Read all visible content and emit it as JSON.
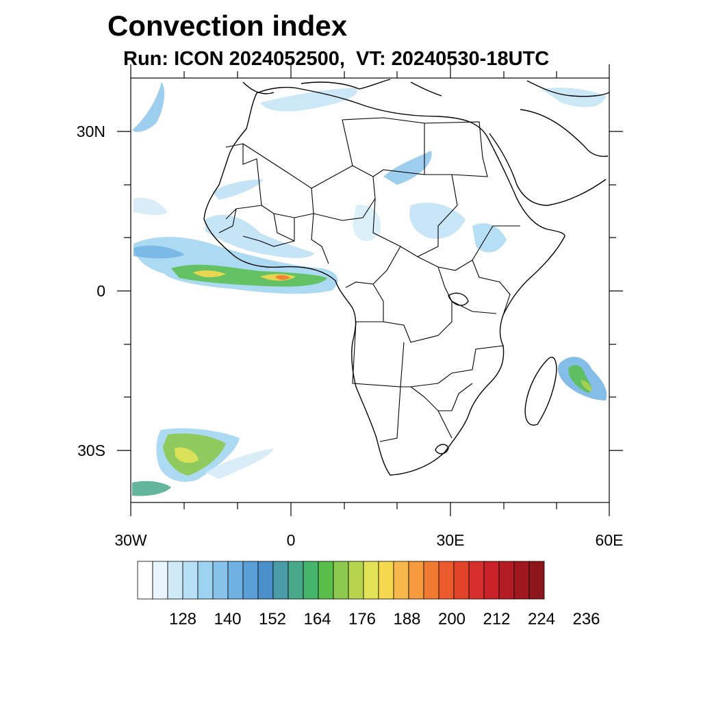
{
  "title": "Convection index",
  "subtitle": "Run: ICON 2024052500,  VT: 20240530-18UTC",
  "axes": {
    "lon_labels": [
      "30W",
      "0",
      "30E",
      "60E"
    ],
    "lat_labels": [
      "30N",
      "0",
      "30S"
    ],
    "lon_range": [
      -30,
      60
    ],
    "lat_range": [
      -40,
      40
    ]
  },
  "colorbar": {
    "tick_labels": [
      "128",
      "140",
      "152",
      "164",
      "176",
      "188",
      "200",
      "212",
      "224",
      "236"
    ],
    "colors": [
      "#ffffff",
      "#e8f5fc",
      "#cfe9f7",
      "#b6def4",
      "#9dd3f1",
      "#86c2ea",
      "#6fb1e3",
      "#5a9ed6",
      "#4a8fca",
      "#4a9aa8",
      "#48a88a",
      "#46b46a",
      "#58bd4a",
      "#8cc84e",
      "#b6d44e",
      "#e2e256",
      "#f6d84e",
      "#f6b84a",
      "#f59a3e",
      "#f07a32",
      "#ea5a2c",
      "#e2442a",
      "#d62e2c",
      "#c82228",
      "#b41c24",
      "#a0181e",
      "#8c161c"
    ]
  }
}
